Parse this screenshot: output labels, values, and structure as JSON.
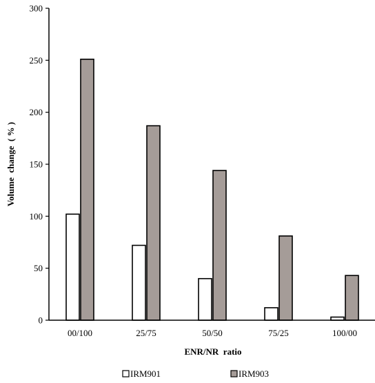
{
  "chart_data": {
    "type": "bar",
    "categories": [
      "00/100",
      "25/75",
      "50/50",
      "75/25",
      "100/00"
    ],
    "series": [
      {
        "name": "IRM901",
        "values": [
          102,
          72,
          40,
          12,
          3
        ],
        "color": "#ffffff"
      },
      {
        "name": "IRM903",
        "values": [
          251,
          187,
          144,
          81,
          43
        ],
        "color": "#a59c98"
      }
    ],
    "title": "",
    "xlabel": "ENR/NR  ratio",
    "ylabel": "Volume  change  ( % )",
    "ylim": [
      0,
      300
    ],
    "yticks": [
      0,
      50,
      100,
      150,
      200,
      250,
      300
    ],
    "grid": false,
    "legend_position": "bottom-center"
  }
}
